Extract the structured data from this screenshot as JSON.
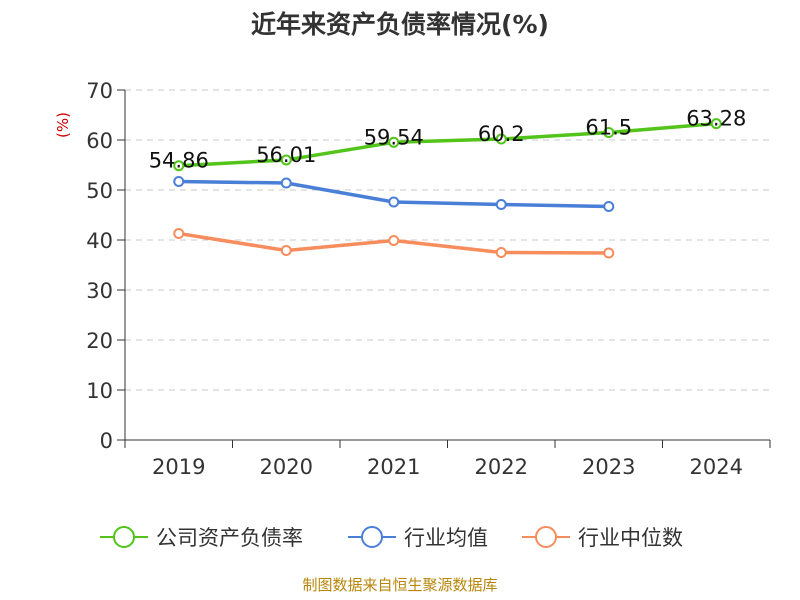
{
  "chart_data": {
    "type": "line",
    "title": "近年来资产负债率情况(%)",
    "ylabel": "(%)",
    "xlabel": "",
    "categories": [
      "2019",
      "2020",
      "2021",
      "2022",
      "2023",
      "2024"
    ],
    "ylim": [
      0,
      70
    ],
    "yticks": [
      "0",
      "10",
      "20",
      "30",
      "40",
      "50",
      "60",
      "70"
    ],
    "grid": true,
    "legend_position": "bottom",
    "series": [
      {
        "name": "公司资产负债率",
        "color": "#52c41a",
        "values": [
          54.86,
          56.01,
          59.54,
          60.2,
          61.5,
          63.28
        ],
        "labels": [
          "54.86",
          "56.01",
          "59.54",
          "60.2",
          "61.5",
          "63.28"
        ]
      },
      {
        "name": "行业均值",
        "color": "#4a7fd8",
        "values": [
          51.7,
          51.4,
          47.6,
          47.1,
          46.7,
          null
        ]
      },
      {
        "name": "行业中位数",
        "color": "#f78c5c",
        "values": [
          41.3,
          37.9,
          39.9,
          37.5,
          37.4,
          null
        ]
      }
    ]
  },
  "source": "制图数据来自恒生聚源数据库"
}
